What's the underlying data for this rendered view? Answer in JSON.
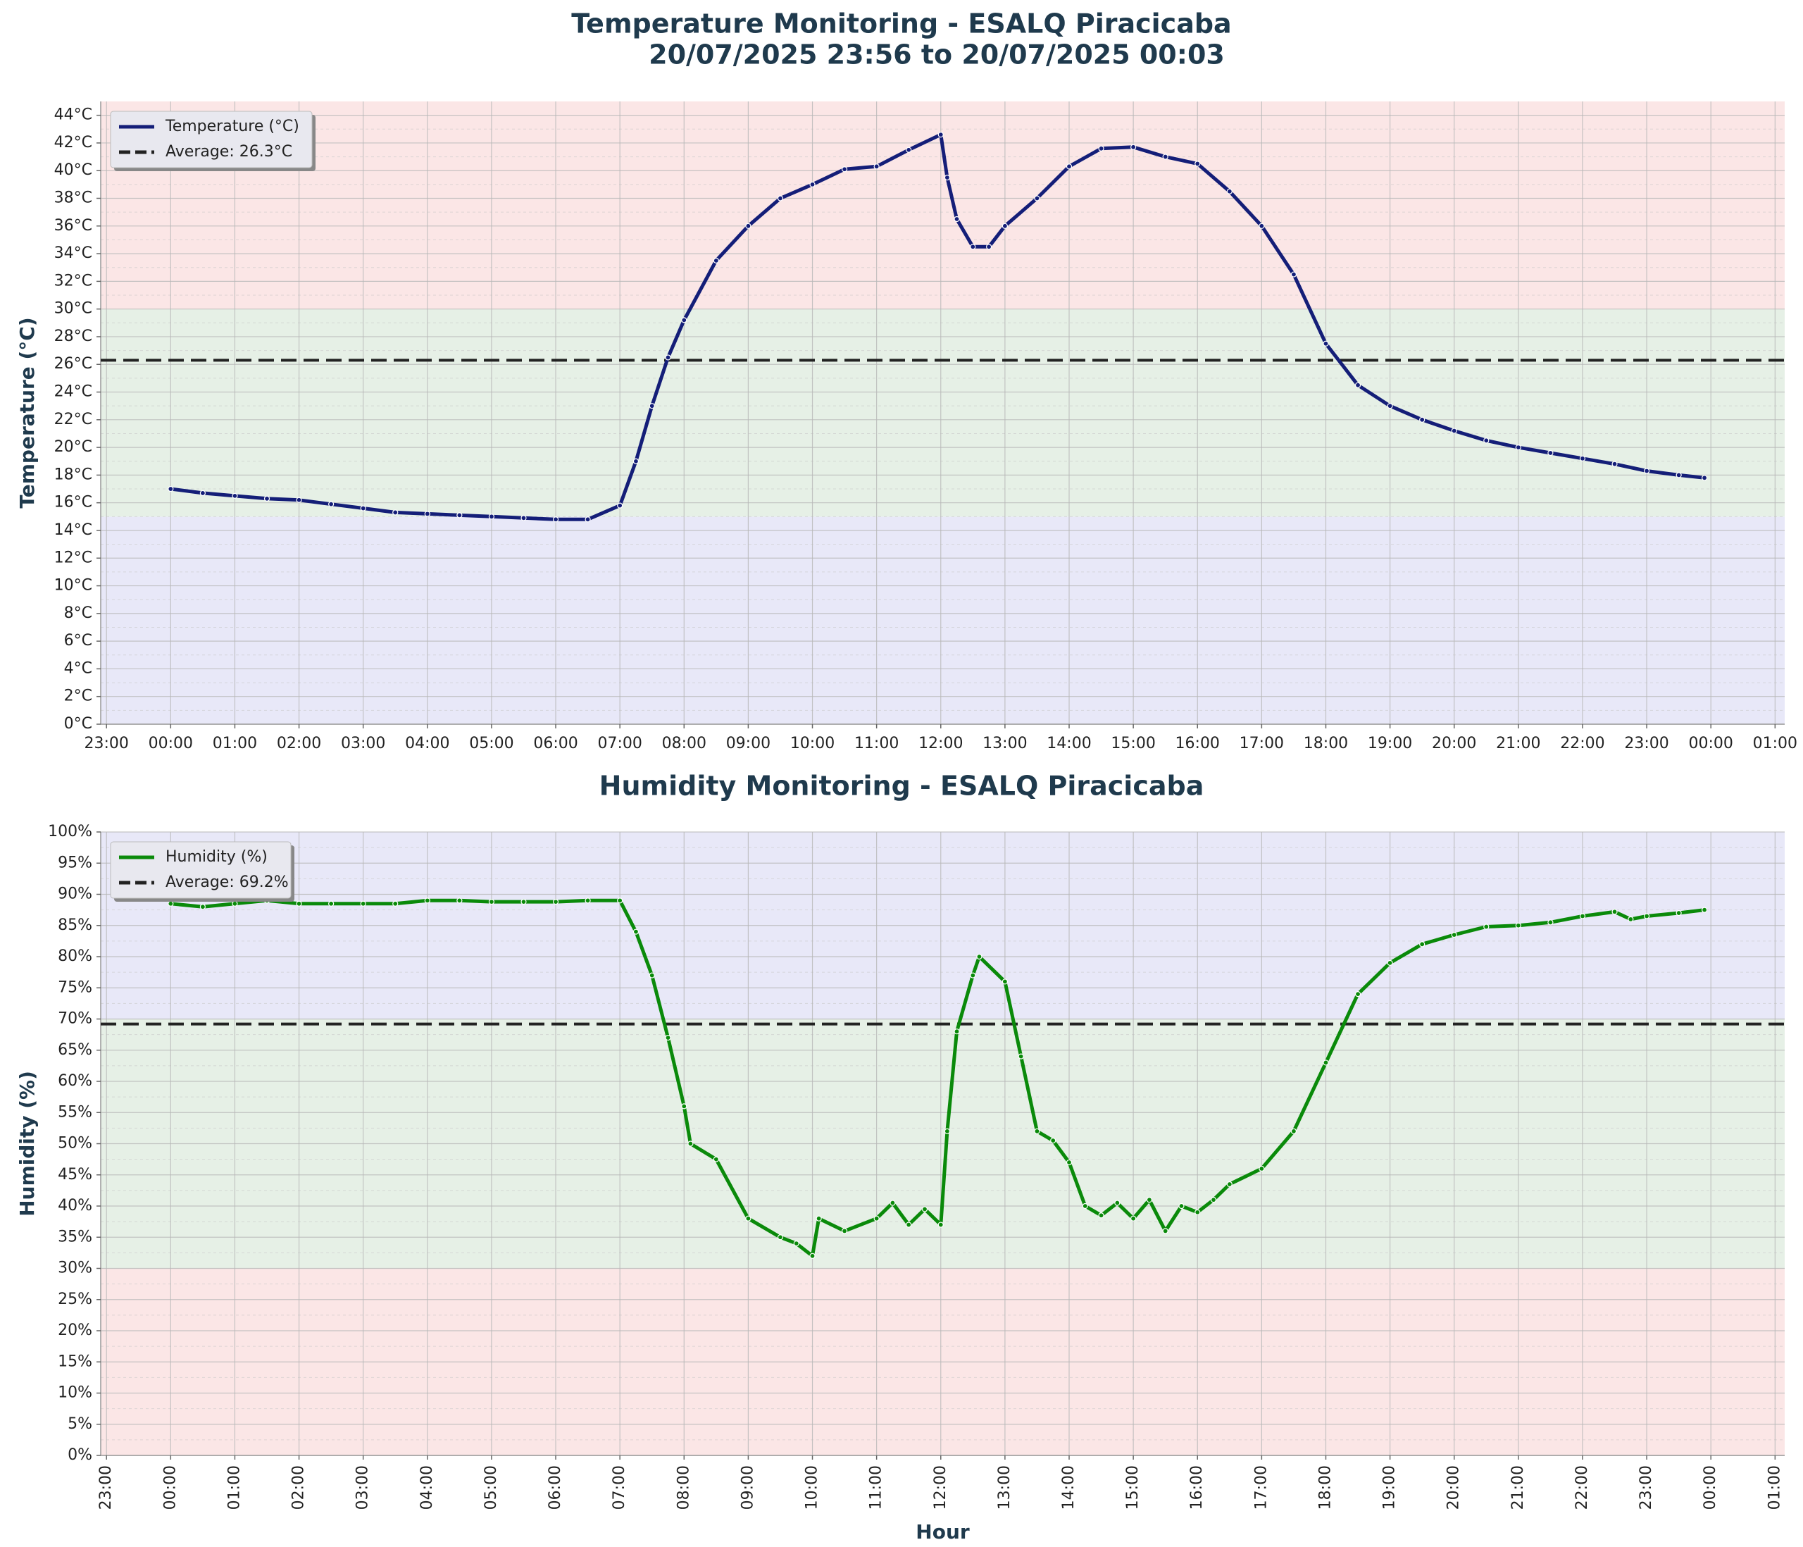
{
  "chart_data": [
    {
      "type": "line",
      "title": "Temperature Monitoring - ESALQ Piracicaba",
      "subtitle": "20/07/2025 23:56 to 20/07/2025 00:03",
      "ylabel": "Temperature (°C)",
      "xlim": [
        -1.09,
        25.15
      ],
      "xticks": [
        {
          "value": -1,
          "label": "23:00"
        },
        {
          "value": 0,
          "label": "00:00"
        },
        {
          "value": 1,
          "label": "01:00"
        },
        {
          "value": 2,
          "label": "02:00"
        },
        {
          "value": 3,
          "label": "03:00"
        },
        {
          "value": 4,
          "label": "04:00"
        },
        {
          "value": 5,
          "label": "05:00"
        },
        {
          "value": 6,
          "label": "06:00"
        },
        {
          "value": 7,
          "label": "07:00"
        },
        {
          "value": 8,
          "label": "08:00"
        },
        {
          "value": 9,
          "label": "09:00"
        },
        {
          "value": 10,
          "label": "10:00"
        },
        {
          "value": 11,
          "label": "11:00"
        },
        {
          "value": 12,
          "label": "12:00"
        },
        {
          "value": 13,
          "label": "13:00"
        },
        {
          "value": 14,
          "label": "14:00"
        },
        {
          "value": 15,
          "label": "15:00"
        },
        {
          "value": 16,
          "label": "16:00"
        },
        {
          "value": 17,
          "label": "17:00"
        },
        {
          "value": 18,
          "label": "18:00"
        },
        {
          "value": 19,
          "label": "19:00"
        },
        {
          "value": 20,
          "label": "20:00"
        },
        {
          "value": 21,
          "label": "21:00"
        },
        {
          "value": 22,
          "label": "22:00"
        },
        {
          "value": 23,
          "label": "23:00"
        },
        {
          "value": 24,
          "label": "00:00"
        },
        {
          "value": 25,
          "label": "01:00"
        }
      ],
      "ylim": [
        0,
        45
      ],
      "yticks": [
        {
          "value": 0,
          "label": "0°C"
        },
        {
          "value": 2,
          "label": "2°C"
        },
        {
          "value": 4,
          "label": "4°C"
        },
        {
          "value": 6,
          "label": "6°C"
        },
        {
          "value": 8,
          "label": "8°C"
        },
        {
          "value": 10,
          "label": "10°C"
        },
        {
          "value": 12,
          "label": "12°C"
        },
        {
          "value": 14,
          "label": "14°C"
        },
        {
          "value": 16,
          "label": "16°C"
        },
        {
          "value": 18,
          "label": "18°C"
        },
        {
          "value": 20,
          "label": "20°C"
        },
        {
          "value": 22,
          "label": "22°C"
        },
        {
          "value": 24,
          "label": "24°C"
        },
        {
          "value": 26,
          "label": "26°C"
        },
        {
          "value": 28,
          "label": "28°C"
        },
        {
          "value": 30,
          "label": "30°C"
        },
        {
          "value": 32,
          "label": "32°C"
        },
        {
          "value": 34,
          "label": "34°C"
        },
        {
          "value": 36,
          "label": "36°C"
        },
        {
          "value": 38,
          "label": "38°C"
        },
        {
          "value": 40,
          "label": "40°C"
        },
        {
          "value": 42,
          "label": "42°C"
        },
        {
          "value": 44,
          "label": "44°C"
        }
      ],
      "grid": true,
      "legend": "upper left",
      "bands": [
        {
          "from": 0,
          "to": 15,
          "color": "#e8e8f8"
        },
        {
          "from": 15,
          "to": 30,
          "color": "#e6f0e6"
        },
        {
          "from": 30,
          "to": 45,
          "color": "#fbe6e6"
        }
      ],
      "average": {
        "value": 26.3,
        "label": "Average: 26.3°C",
        "color": "#222222"
      },
      "x": [
        0,
        0.5,
        1,
        1.5,
        2,
        2.5,
        3,
        3.5,
        4,
        4.5,
        5,
        5.5,
        6,
        6.5,
        7,
        7.25,
        7.5,
        7.75,
        8,
        8.5,
        9,
        9.5,
        10,
        10.5,
        11,
        11.5,
        12,
        12.1,
        12.25,
        12.5,
        12.75,
        13,
        13.5,
        14,
        14.5,
        15,
        15.5,
        16,
        16.5,
        17,
        17.5,
        18,
        18.5,
        19,
        19.5,
        20,
        20.5,
        21,
        21.5,
        22,
        22.5,
        23,
        23.5,
        23.9
      ],
      "series": [
        {
          "name": "Temperature (°C)",
          "color": "#141e78",
          "values": [
            17.0,
            16.7,
            16.5,
            16.3,
            16.2,
            15.9,
            15.6,
            15.3,
            15.2,
            15.1,
            15.0,
            14.9,
            14.8,
            14.8,
            15.8,
            19,
            23,
            26.5,
            29.2,
            33.5,
            36,
            38,
            39,
            40.1,
            40.3,
            41.5,
            42.6,
            39.5,
            36.5,
            34.5,
            34.5,
            36,
            38,
            40.3,
            41.6,
            41.7,
            41,
            40.5,
            38.5,
            36,
            32.5,
            27.5,
            24.5,
            23,
            22,
            21.2,
            20.5,
            20,
            19.6,
            19.2,
            18.8,
            18.3,
            18.0,
            17.8
          ]
        }
      ]
    },
    {
      "type": "line",
      "title": "Humidity Monitoring - ESALQ Piracicaba",
      "ylabel": "Humidity (%)",
      "xlabel": "Hour",
      "xlim": [
        -1.09,
        25.15
      ],
      "xticks": [
        {
          "value": -1,
          "label": "23:00"
        },
        {
          "value": 0,
          "label": "00:00"
        },
        {
          "value": 1,
          "label": "01:00"
        },
        {
          "value": 2,
          "label": "02:00"
        },
        {
          "value": 3,
          "label": "03:00"
        },
        {
          "value": 4,
          "label": "04:00"
        },
        {
          "value": 5,
          "label": "05:00"
        },
        {
          "value": 6,
          "label": "06:00"
        },
        {
          "value": 7,
          "label": "07:00"
        },
        {
          "value": 8,
          "label": "08:00"
        },
        {
          "value": 9,
          "label": "09:00"
        },
        {
          "value": 10,
          "label": "10:00"
        },
        {
          "value": 11,
          "label": "11:00"
        },
        {
          "value": 12,
          "label": "12:00"
        },
        {
          "value": 13,
          "label": "13:00"
        },
        {
          "value": 14,
          "label": "14:00"
        },
        {
          "value": 15,
          "label": "15:00"
        },
        {
          "value": 16,
          "label": "16:00"
        },
        {
          "value": 17,
          "label": "17:00"
        },
        {
          "value": 18,
          "label": "18:00"
        },
        {
          "value": 19,
          "label": "19:00"
        },
        {
          "value": 20,
          "label": "20:00"
        },
        {
          "value": 21,
          "label": "21:00"
        },
        {
          "value": 22,
          "label": "22:00"
        },
        {
          "value": 23,
          "label": "23:00"
        },
        {
          "value": 24,
          "label": "00:00"
        },
        {
          "value": 25,
          "label": "01:00"
        }
      ],
      "xtick_rotation": 90,
      "ylim": [
        0,
        100
      ],
      "yticks": [
        {
          "value": 0,
          "label": "0%"
        },
        {
          "value": 5,
          "label": "5%"
        },
        {
          "value": 10,
          "label": "10%"
        },
        {
          "value": 15,
          "label": "15%"
        },
        {
          "value": 20,
          "label": "20%"
        },
        {
          "value": 25,
          "label": "25%"
        },
        {
          "value": 30,
          "label": "30%"
        },
        {
          "value": 35,
          "label": "35%"
        },
        {
          "value": 40,
          "label": "40%"
        },
        {
          "value": 45,
          "label": "45%"
        },
        {
          "value": 50,
          "label": "50%"
        },
        {
          "value": 55,
          "label": "55%"
        },
        {
          "value": 60,
          "label": "60%"
        },
        {
          "value": 65,
          "label": "65%"
        },
        {
          "value": 70,
          "label": "70%"
        },
        {
          "value": 75,
          "label": "75%"
        },
        {
          "value": 80,
          "label": "80%"
        },
        {
          "value": 85,
          "label": "85%"
        },
        {
          "value": 90,
          "label": "90%"
        },
        {
          "value": 95,
          "label": "95%"
        },
        {
          "value": 100,
          "label": "100%"
        }
      ],
      "grid": true,
      "legend": "upper left",
      "bands": [
        {
          "from": 0,
          "to": 30,
          "color": "#fbe6e6"
        },
        {
          "from": 30,
          "to": 70,
          "color": "#e6f0e6"
        },
        {
          "from": 70,
          "to": 100,
          "color": "#e8e8f8"
        }
      ],
      "average": {
        "value": 69.2,
        "label": "Average: 69.2%",
        "color": "#222222"
      },
      "x": [
        0,
        0.5,
        1,
        1.5,
        2,
        2.5,
        3,
        3.5,
        4,
        4.5,
        5,
        5.5,
        6,
        6.5,
        7,
        7.25,
        7.5,
        7.75,
        8,
        8.1,
        8.5,
        9,
        9.5,
        9.75,
        10,
        10.1,
        10.5,
        11,
        11.25,
        11.5,
        11.75,
        12,
        12.1,
        12.25,
        12.5,
        12.6,
        13,
        13.25,
        13.5,
        13.75,
        14,
        14.25,
        14.5,
        14.75,
        15,
        15.25,
        15.5,
        15.75,
        16,
        16.25,
        16.5,
        17,
        17.5,
        18,
        18.5,
        19,
        19.5,
        20,
        20.5,
        21,
        21.5,
        22,
        22.5,
        22.75,
        23,
        23.5,
        23.9
      ],
      "series": [
        {
          "name": "Humidity (%)",
          "color": "#0a8a0a",
          "values": [
            88.5,
            88,
            88.5,
            89,
            88.5,
            88.5,
            88.5,
            88.5,
            89,
            89,
            88.8,
            88.8,
            88.8,
            89,
            89,
            84,
            77,
            67,
            56,
            50,
            47.5,
            38,
            35,
            34,
            32,
            38,
            36,
            38,
            40.5,
            37,
            39.5,
            37,
            52,
            68,
            77,
            80,
            76,
            64,
            52,
            50.5,
            47,
            40,
            38.5,
            40.5,
            38,
            41,
            36,
            40,
            39,
            41,
            43.5,
            46,
            52,
            63,
            74,
            79,
            82,
            83.5,
            84.8,
            85,
            85.5,
            86.5,
            87.2,
            86,
            86.5,
            87,
            87.5
          ]
        }
      ]
    }
  ]
}
